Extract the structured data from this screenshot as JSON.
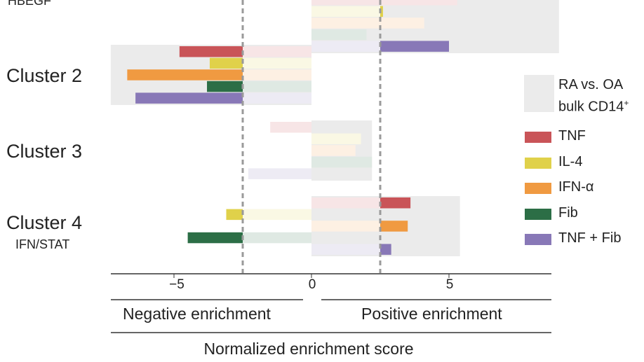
{
  "chart_data": {
    "type": "bar",
    "orientation": "horizontal",
    "xlabel": "Normalized enrichment score",
    "xticks": [
      -5,
      0,
      5
    ],
    "xlim": [
      -7.5,
      8.5
    ],
    "threshold_lines": [
      -2.5,
      2.5
    ],
    "region_labels": {
      "negative": "Negative enrichment",
      "positive": "Positive enrichment"
    },
    "reference": {
      "label_line1": "RA vs. OA",
      "label_line2": "bulk CD14",
      "label_sup": "+"
    },
    "series": [
      {
        "name": "TNF",
        "color": "#c95458"
      },
      {
        "name": "IL-4",
        "color": "#e0d14a"
      },
      {
        "name": "IFN-α",
        "color": "#f09a41"
      },
      {
        "name": "Fib",
        "color": "#2c6e46"
      },
      {
        "name": "TNF + Fib",
        "color": "#8878b7"
      }
    ],
    "clusters": [
      {
        "name": "HBEGF",
        "sup": "+",
        "reference_range": [
          0,
          9.0
        ],
        "values": [
          5.3,
          2.6,
          4.1,
          2.0,
          5.0
        ],
        "significant": [
          false,
          true,
          false,
          false,
          true
        ]
      },
      {
        "name": "Cluster 2",
        "reference_range": [
          -7.3,
          0
        ],
        "values": [
          -4.8,
          -3.7,
          -6.7,
          -3.8,
          -6.4
        ],
        "significant": [
          true,
          true,
          true,
          true,
          true
        ]
      },
      {
        "name": "Cluster 3",
        "reference_range": [
          0,
          2.2
        ],
        "values": [
          -1.5,
          1.8,
          1.6,
          2.2,
          -2.3
        ],
        "significant": [
          false,
          false,
          false,
          false,
          false
        ]
      },
      {
        "name": "Cluster 4",
        "subtitle": "IFN/STAT",
        "reference_range": [
          0,
          5.4
        ],
        "values": [
          3.6,
          -3.1,
          3.5,
          -4.5,
          2.9
        ],
        "significant": [
          true,
          true,
          true,
          true,
          true
        ]
      }
    ]
  },
  "legend": {
    "items": [
      {
        "label": "TNF",
        "color": "#c95458"
      },
      {
        "label": "IL-4",
        "color": "#e0d14a"
      },
      {
        "label": "IFN-α",
        "color": "#f09a41"
      },
      {
        "label": "Fib",
        "color": "#2c6e46"
      },
      {
        "label": "TNF + Fib",
        "color": "#8878b7"
      }
    ]
  },
  "ticks": [
    "−5",
    "0",
    "5"
  ]
}
